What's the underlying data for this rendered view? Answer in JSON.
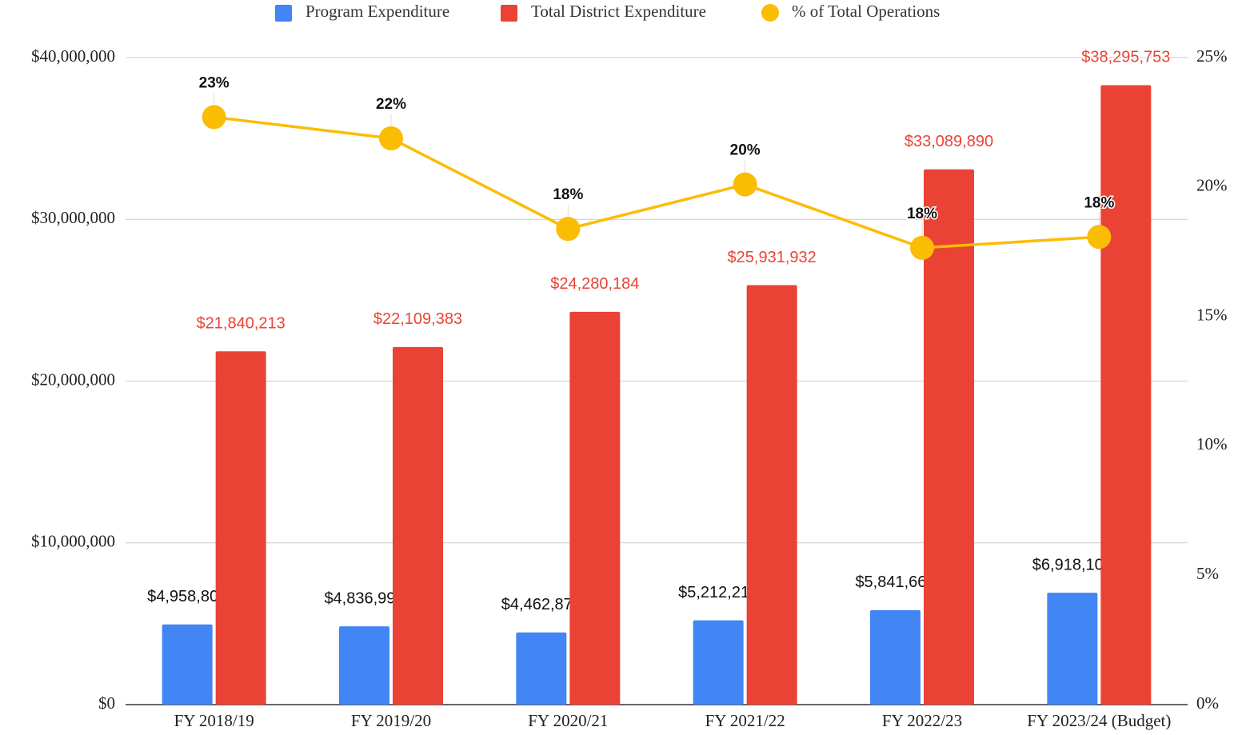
{
  "chart_data": {
    "type": "bar",
    "categories": [
      "FY 2018/19",
      "FY 2019/20",
      "FY 2020/21",
      "FY 2021/22",
      "FY 2022/23",
      "FY 2023/24 (Budget)"
    ],
    "series": [
      {
        "name": "Program Expenditure",
        "color": "#4285f4",
        "values": [
          4958807,
          4836997,
          4462871,
          5212210,
          5841667,
          6918101
        ],
        "value_labels": [
          "$4,958,807",
          "$4,836,997",
          "$4,462,871",
          "$5,212,210",
          "$5,841,667",
          "$6,918,101"
        ]
      },
      {
        "name": "Total District Expenditure",
        "color": "#ea4335",
        "values": [
          21840213,
          22109383,
          24280184,
          25931932,
          33089890,
          38295753
        ],
        "value_labels": [
          "$21,840,213",
          "$22,109,383",
          "$24,280,184",
          "$25,931,932",
          "$33,089,890",
          "$38,295,753"
        ]
      },
      {
        "name": "% of Total Operations",
        "color": "#fbbc04",
        "type": "line",
        "axis": "y2",
        "values": [
          22.7,
          21.88,
          18.38,
          20.1,
          17.65,
          18.07
        ],
        "value_labels": [
          "23%",
          "22%",
          "18%",
          "20%",
          "18%",
          "18%"
        ]
      }
    ],
    "ylim": [
      0,
      40000000
    ],
    "yticks": [
      {
        "value": 0,
        "label": "$0"
      },
      {
        "value": 10000000,
        "label": "$10,000,000"
      },
      {
        "value": 20000000,
        "label": "$20,000,000"
      },
      {
        "value": 30000000,
        "label": "$30,000,000"
      },
      {
        "value": 40000000,
        "label": "$40,000,000"
      }
    ],
    "y2lim": [
      0,
      25
    ],
    "y2ticks": [
      {
        "value": 0,
        "label": "0%"
      },
      {
        "value": 5,
        "label": "5%"
      },
      {
        "value": 10,
        "label": "10%"
      },
      {
        "value": 15,
        "label": "15%"
      },
      {
        "value": 20,
        "label": "20%"
      },
      {
        "value": 25,
        "label": "25%"
      }
    ],
    "grid": true,
    "legend": "top"
  }
}
